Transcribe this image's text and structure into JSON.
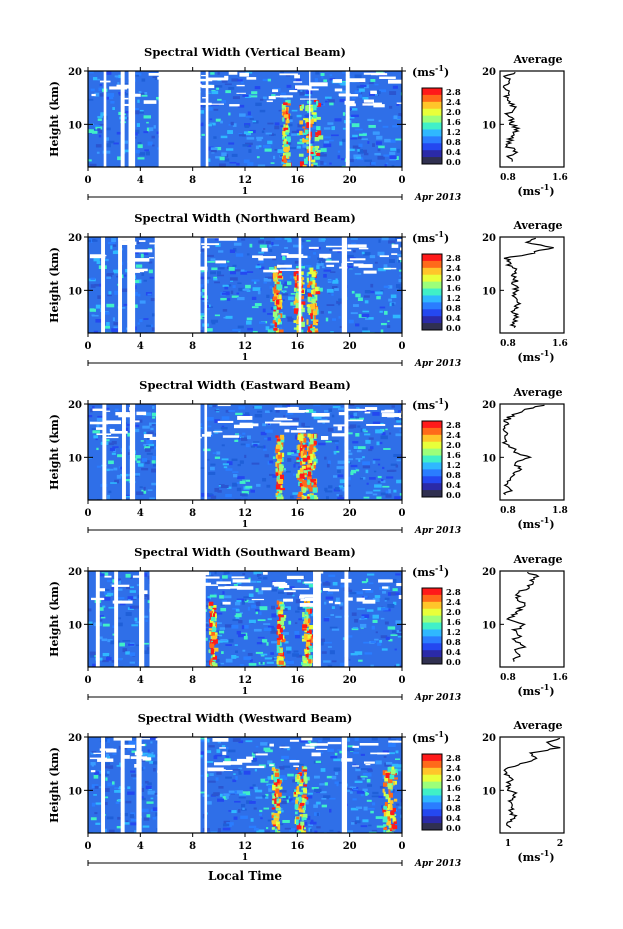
{
  "page": {
    "xaxis_label": "Local Time"
  },
  "colorbar": {
    "unit_text": "ms",
    "unit_exp": "-1",
    "ticks": [
      "2.8",
      "2.4",
      "2.0",
      "1.6",
      "1.2",
      "0.8",
      "0.4",
      "0.0"
    ],
    "colors": [
      "#ff1a1a",
      "#ff6a1a",
      "#ffc52a",
      "#e8ff3a",
      "#9cff7a",
      "#40f0c8",
      "#2fb8ff",
      "#2a7dff",
      "#2448f0",
      "#2b2aa8",
      "#303050"
    ]
  },
  "shared_axes": {
    "height_label": "Height (km)",
    "height_ticks": [
      "20",
      "10"
    ],
    "time_ticks": [
      "0",
      "4",
      "8",
      "12",
      "16",
      "20",
      "0"
    ],
    "date_day": "1",
    "date_month": "Apr 2013",
    "avg_title": "Average",
    "avg_unit": "ms",
    "avg_unit_exp": "-1"
  },
  "chart_data": [
    {
      "type": "heatmap",
      "title": "Spectral Width (Vertical Beam)",
      "xlabel": "Local Time",
      "ylabel": "Height (km)",
      "xlim": [
        0,
        24
      ],
      "ylim": [
        2,
        20
      ],
      "clim": [
        0,
        3.0
      ],
      "hot_time_ranges": [
        [
          14.8,
          15.2
        ],
        [
          16.1,
          17.6
        ]
      ],
      "data_gaps_hours": [
        [
          1.2,
          1.4
        ],
        [
          2.5,
          2.8
        ],
        [
          3.1,
          3.6
        ],
        [
          5.4,
          8.6
        ],
        [
          9.0,
          9.2
        ],
        [
          16.9,
          17.0
        ],
        [
          19.7,
          20.0
        ]
      ],
      "average": {
        "xlim": [
          0.8,
          1.6
        ],
        "xticks": [
          "0.8",
          "1.6"
        ],
        "heights": [
          3,
          4,
          5,
          6,
          7,
          8,
          9,
          10,
          11,
          12,
          13,
          14,
          15,
          16,
          17,
          18,
          19,
          20
        ],
        "values": [
          0.95,
          0.9,
          1.0,
          0.88,
          0.92,
          0.98,
          1.02,
          0.95,
          0.96,
          0.9,
          1.0,
          0.93,
          0.88,
          0.92,
          0.82,
          0.95,
          0.88,
          1.05
        ]
      }
    },
    {
      "type": "heatmap",
      "title": "Spectral Width (Northward Beam)",
      "xlabel": "Local Time",
      "ylabel": "Height (km)",
      "xlim": [
        0,
        24
      ],
      "ylim": [
        2,
        20
      ],
      "clim": [
        0,
        3.0
      ],
      "hot_time_ranges": [
        [
          14.1,
          14.6
        ],
        [
          15.7,
          16.3
        ],
        [
          16.7,
          17.4
        ]
      ],
      "data_gaps_hours": [
        [
          1.0,
          1.3
        ],
        [
          2.3,
          2.6
        ],
        [
          3.0,
          3.6
        ],
        [
          5.1,
          8.6
        ],
        [
          8.9,
          9.1
        ],
        [
          16.1,
          16.3
        ],
        [
          19.4,
          19.8
        ]
      ],
      "average": {
        "xlim": [
          0.8,
          1.6
        ],
        "xticks": [
          "0.8",
          "1.6"
        ],
        "heights": [
          3,
          4,
          5,
          6,
          7,
          8,
          9,
          10,
          11,
          12,
          13,
          14,
          15,
          16,
          17,
          18,
          19,
          20
        ],
        "values": [
          0.98,
          0.96,
          1.02,
          0.95,
          1.0,
          1.05,
          0.98,
          1.02,
          0.97,
          1.0,
          0.95,
          1.0,
          0.9,
          0.88,
          1.2,
          1.45,
          1.1,
          1.3
        ]
      }
    },
    {
      "type": "heatmap",
      "title": "Spectral Width (Eastward Beam)",
      "xlabel": "Local Time",
      "ylabel": "Height (km)",
      "xlim": [
        0,
        24
      ],
      "ylim": [
        2,
        20
      ],
      "clim": [
        0,
        3.0
      ],
      "hot_time_ranges": [
        [
          14.3,
          14.7
        ],
        [
          15.9,
          16.5
        ],
        [
          16.7,
          17.3
        ]
      ],
      "data_gaps_hours": [
        [
          1.1,
          1.4
        ],
        [
          2.6,
          2.9
        ],
        [
          3.2,
          3.6
        ],
        [
          5.2,
          8.6
        ],
        [
          8.9,
          9.1
        ],
        [
          19.6,
          19.9
        ]
      ],
      "average": {
        "xlim": [
          0.8,
          1.8
        ],
        "xticks": [
          "0.8",
          "1.8"
        ],
        "heights": [
          3,
          4,
          5,
          6,
          7,
          8,
          9,
          10,
          11,
          12,
          13,
          14,
          15,
          16,
          17,
          18,
          19,
          20
        ],
        "values": [
          0.9,
          0.95,
          0.88,
          1.0,
          1.05,
          1.1,
          1.0,
          1.25,
          1.05,
          0.95,
          0.88,
          0.92,
          0.85,
          0.88,
          0.9,
          1.0,
          1.2,
          1.6
        ]
      }
    },
    {
      "type": "heatmap",
      "title": "Spectral Width (Southward Beam)",
      "xlabel": "Local Time",
      "ylabel": "Height (km)",
      "xlim": [
        0,
        24
      ],
      "ylim": [
        2,
        20
      ],
      "clim": [
        0,
        3.0
      ],
      "hot_time_ranges": [
        [
          9.2,
          9.6
        ],
        [
          14.4,
          14.8
        ],
        [
          16.3,
          17.0
        ]
      ],
      "data_gaps_hours": [
        [
          0.6,
          0.9
        ],
        [
          2.0,
          2.3
        ],
        [
          3.9,
          4.3
        ],
        [
          4.7,
          9.0
        ],
        [
          17.2,
          17.8
        ],
        [
          19.6,
          19.9
        ]
      ],
      "average": {
        "xlim": [
          0.8,
          1.6
        ],
        "xticks": [
          "0.8",
          "1.6"
        ],
        "heights": [
          3,
          4,
          5,
          6,
          7,
          8,
          9,
          10,
          11,
          12,
          13,
          14,
          15,
          16,
          17,
          18,
          19,
          20
        ],
        "values": [
          0.95,
          1.05,
          1.0,
          1.1,
          0.95,
          1.05,
          1.0,
          1.1,
          0.92,
          0.98,
          1.05,
          1.1,
          1.0,
          1.05,
          1.15,
          1.2,
          1.25,
          1.1
        ]
      }
    },
    {
      "type": "heatmap",
      "title": "Spectral Width (Westward Beam)",
      "xlabel": "Local Time",
      "ylabel": "Height (km)",
      "xlim": [
        0,
        24
      ],
      "ylim": [
        2,
        20
      ],
      "clim": [
        0,
        3.0
      ],
      "hot_time_ranges": [
        [
          14.0,
          14.5
        ],
        [
          15.7,
          16.6
        ],
        [
          22.5,
          23.4
        ]
      ],
      "data_gaps_hours": [
        [
          1.0,
          1.3
        ],
        [
          2.5,
          2.8
        ],
        [
          3.7,
          4.1
        ],
        [
          5.3,
          8.6
        ],
        [
          8.9,
          9.1
        ],
        [
          19.4,
          19.8
        ]
      ],
      "average": {
        "xlim": [
          0.8,
          2.0
        ],
        "xticks": [
          "1",
          "2"
        ],
        "heights": [
          3,
          4,
          5,
          6,
          7,
          8,
          9,
          10,
          11,
          12,
          13,
          14,
          15,
          16,
          17,
          18,
          19,
          20
        ],
        "values": [
          1.0,
          0.95,
          1.1,
          1.0,
          1.05,
          0.98,
          1.1,
          1.0,
          0.95,
          1.0,
          0.92,
          0.9,
          1.2,
          1.5,
          1.4,
          1.9,
          1.7,
          2.0
        ]
      }
    }
  ]
}
